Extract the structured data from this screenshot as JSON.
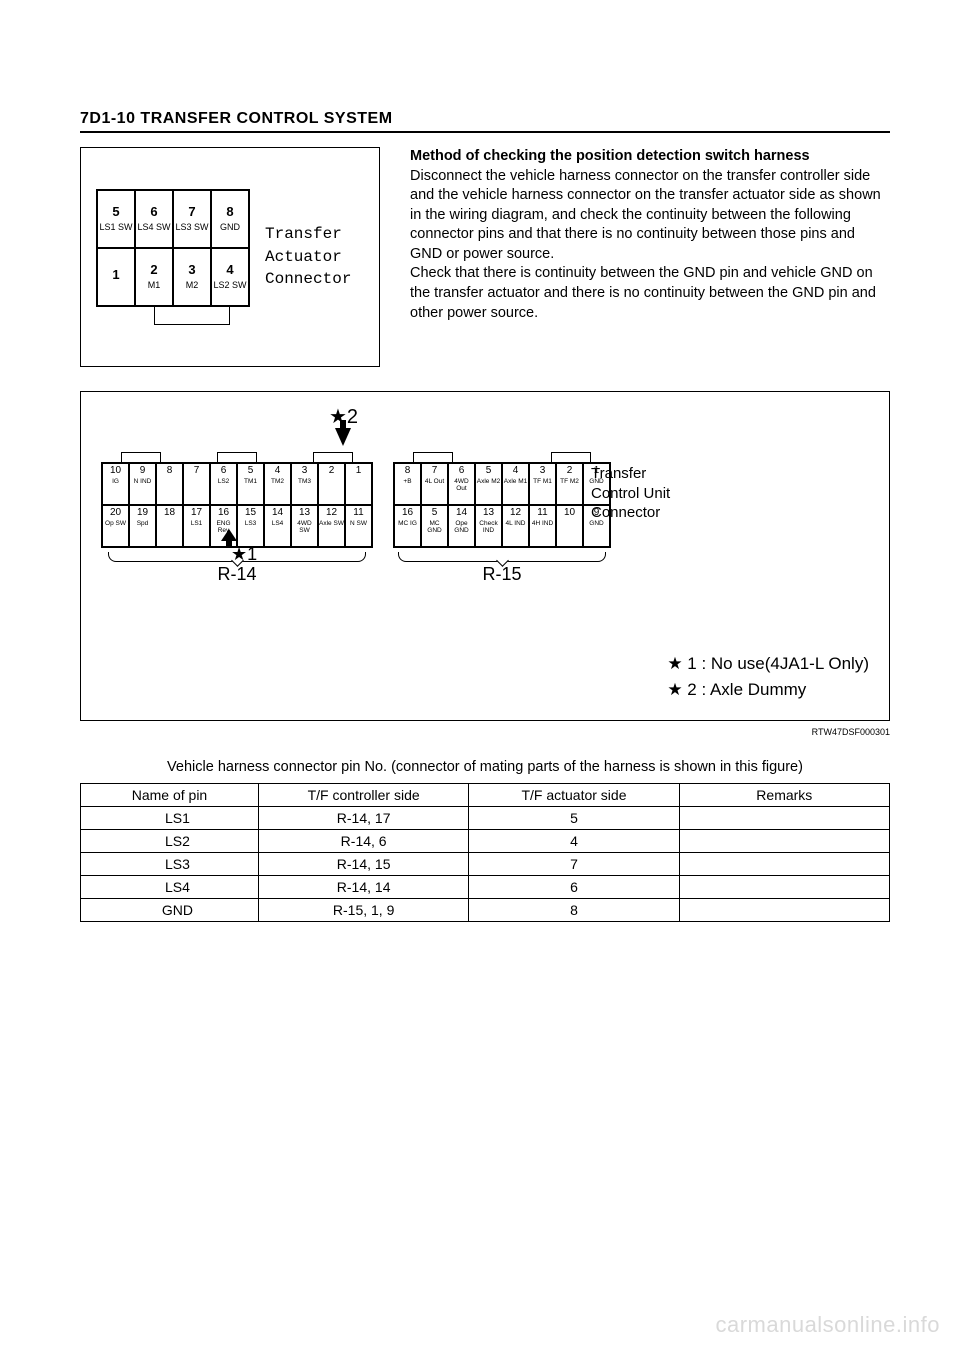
{
  "header": "7D1-10  TRANSFER CONTROL SYSTEM",
  "actuator": {
    "label_line1": "Transfer",
    "label_line2": "Actuator",
    "label_line3": "Connector",
    "top_row": [
      {
        "num": "5",
        "lbl": "LS1\nSW"
      },
      {
        "num": "6",
        "lbl": "LS4\nSW"
      },
      {
        "num": "7",
        "lbl": "LS3\nSW"
      },
      {
        "num": "8",
        "lbl": "GND"
      }
    ],
    "bottom_row": [
      {
        "num": "1",
        "lbl": ""
      },
      {
        "num": "2",
        "lbl": "M1"
      },
      {
        "num": "3",
        "lbl": "M2"
      },
      {
        "num": "4",
        "lbl": "LS2\nSW"
      }
    ]
  },
  "method": {
    "title": "Method of checking the position detection switch harness",
    "p1": "Disconnect the vehicle harness connector on the transfer controller side and the vehicle harness connector on the transfer actuator side as shown in the wiring diagram, and check the continuity between the following connector pins and that there is no continuity between those pins and GND or power source.",
    "p2": "Check that there is continuity between the GND pin and vehicle GND on the transfer actuator and there is no continuity between the GND pin and other power source."
  },
  "big": {
    "tcu_label": "Transfer\nControl Unit\nConnector",
    "star2": "★2",
    "star1": "★1",
    "r14_label": "R-14",
    "r15_label": "R-15",
    "legend1": "★ 1 : No use(4JA1-L Only)",
    "legend2": "★ 2 : Axle Dummy",
    "code": "RTW47DSF000301",
    "r14_top": [
      {
        "n": "10",
        "l": "IG"
      },
      {
        "n": "9",
        "l": "N\nIND"
      },
      {
        "n": "8",
        "l": ""
      },
      {
        "n": "7",
        "l": ""
      },
      {
        "n": "6",
        "l": "LS2"
      },
      {
        "n": "5",
        "l": "TM1"
      },
      {
        "n": "4",
        "l": "TM2"
      },
      {
        "n": "3",
        "l": "TM3"
      },
      {
        "n": "2",
        "l": ""
      },
      {
        "n": "1",
        "l": ""
      }
    ],
    "r14_bot": [
      {
        "n": "20",
        "l": "Op\nSW"
      },
      {
        "n": "19",
        "l": "Spd"
      },
      {
        "n": "18",
        "l": ""
      },
      {
        "n": "17",
        "l": "LS1"
      },
      {
        "n": "16",
        "l": "ENG\nRev"
      },
      {
        "n": "15",
        "l": "LS3"
      },
      {
        "n": "14",
        "l": "LS4"
      },
      {
        "n": "13",
        "l": "4WD\nSW"
      },
      {
        "n": "12",
        "l": "Axle\nSW"
      },
      {
        "n": "11",
        "l": "N\nSW"
      }
    ],
    "r15_top": [
      {
        "n": "8",
        "l": "+B"
      },
      {
        "n": "7",
        "l": "4L\nOut"
      },
      {
        "n": "6",
        "l": "4WD\nOut"
      },
      {
        "n": "5",
        "l": "Axle\nM2"
      },
      {
        "n": "4",
        "l": "Axle\nM1"
      },
      {
        "n": "3",
        "l": "TF\nM1"
      },
      {
        "n": "2",
        "l": "TF\nM2"
      },
      {
        "n": "1",
        "l": "GND"
      }
    ],
    "r15_bot": [
      {
        "n": "16",
        "l": "MC\nIG"
      },
      {
        "n": "5",
        "l": "MC\nGND"
      },
      {
        "n": "14",
        "l": "Ope\nGND"
      },
      {
        "n": "13",
        "l": "Check\nIND"
      },
      {
        "n": "12",
        "l": "4L\nIND"
      },
      {
        "n": "11",
        "l": "4H\nIND"
      },
      {
        "n": "10",
        "l": ""
      },
      {
        "n": "9",
        "l": "GND"
      }
    ]
  },
  "table": {
    "caption": "Vehicle harness connector pin No. (connector of mating parts of the harness is shown in this figure)",
    "headers": [
      "Name of pin",
      "T/F controller side",
      "T/F actuator side",
      "Remarks"
    ],
    "rows": [
      [
        "LS1",
        "R-14, 17",
        "5",
        ""
      ],
      [
        "LS2",
        "R-14, 6",
        "4",
        ""
      ],
      [
        "LS3",
        "R-14, 15",
        "7",
        ""
      ],
      [
        "LS4",
        "R-14, 14",
        "6",
        ""
      ],
      [
        "GND",
        "R-15, 1, 9",
        "8",
        ""
      ]
    ]
  },
  "watermark": "carmanualsonline.info"
}
